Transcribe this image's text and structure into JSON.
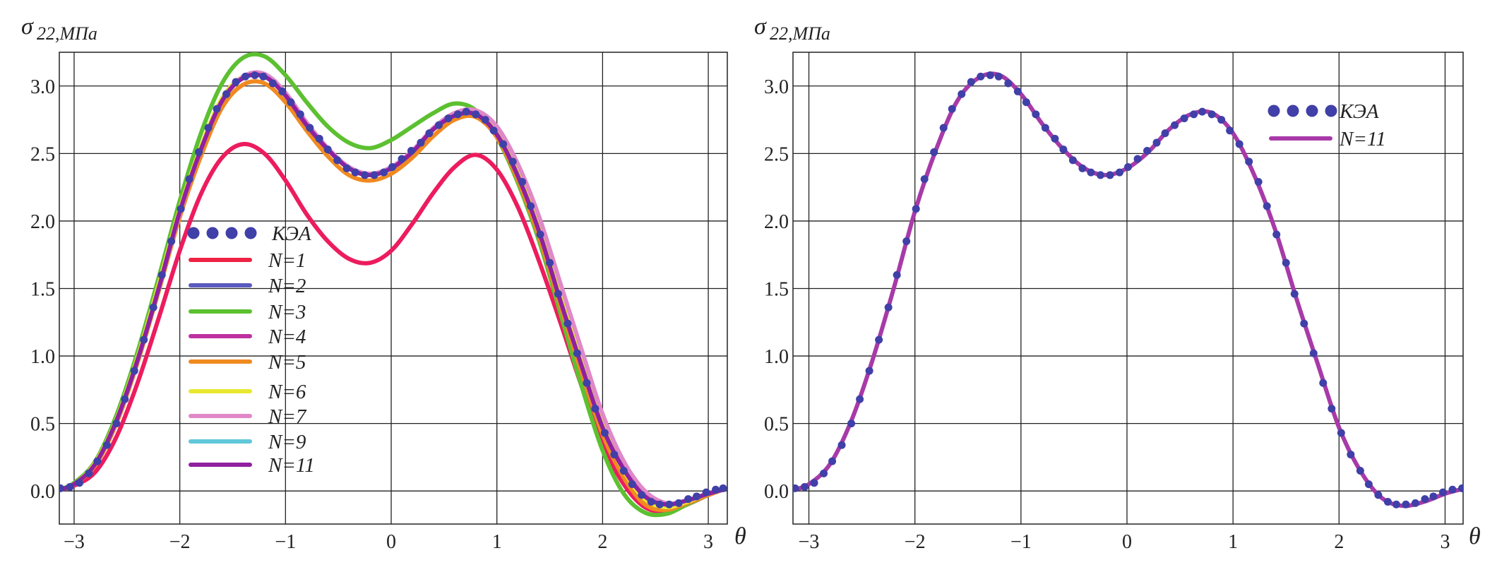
{
  "chart_data": [
    {
      "type": "line",
      "panel": "left",
      "ylabel": {
        "symbol": "σ",
        "subscript": "22,МПа"
      },
      "xlabel": "θ",
      "xlim": [
        -3.14,
        3.18
      ],
      "ylim": [
        -0.245,
        3.25
      ],
      "xticks": [
        -3,
        -2,
        -1,
        0,
        1,
        2,
        3
      ],
      "xtick_labels": [
        "−3",
        "−2",
        "−1",
        "0",
        "1",
        "2",
        "3"
      ],
      "yticks": [
        0.0,
        0.5,
        1.0,
        1.5,
        2.0,
        2.5,
        3.0
      ],
      "ytick_labels": [
        "0.0",
        "0.5",
        "1.0",
        "1.5",
        "2.0",
        "2.5",
        "3.0"
      ],
      "grid": true,
      "legend_placement": "center-left",
      "x": [
        -3.14,
        -3.0,
        -2.8,
        -2.6,
        -2.4,
        -2.2,
        -2.0,
        -1.8,
        -1.6,
        -1.4,
        -1.2,
        -1.0,
        -0.8,
        -0.6,
        -0.4,
        -0.2,
        0.0,
        0.2,
        0.4,
        0.6,
        0.8,
        1.0,
        1.2,
        1.4,
        1.6,
        1.8,
        2.0,
        2.2,
        2.4,
        2.6,
        2.8,
        3.0,
        3.14
      ],
      "series": [
        {
          "name": "N=1",
          "color": "#ec1c5e",
          "legend_color": "#ee2244",
          "values": [
            0.01,
            0.04,
            0.14,
            0.4,
            0.8,
            1.28,
            1.78,
            2.2,
            2.47,
            2.57,
            2.5,
            2.3,
            2.05,
            1.85,
            1.72,
            1.69,
            1.78,
            1.98,
            2.21,
            2.4,
            2.49,
            2.38,
            2.1,
            1.7,
            1.25,
            0.78,
            0.35,
            0.05,
            -0.12,
            -0.15,
            -0.1,
            -0.03,
            0.01
          ]
        },
        {
          "name": "N=2",
          "color": "#5a5abf",
          "values": [
            0.01,
            0.05,
            0.2,
            0.52,
            0.97,
            1.5,
            2.07,
            2.53,
            2.89,
            3.06,
            3.07,
            2.93,
            2.71,
            2.53,
            2.39,
            2.34,
            2.39,
            2.51,
            2.68,
            2.78,
            2.79,
            2.64,
            2.33,
            1.92,
            1.41,
            0.93,
            0.47,
            0.16,
            -0.04,
            -0.1,
            -0.07,
            -0.02,
            0.01
          ]
        },
        {
          "name": "N=3",
          "color": "#5cc030",
          "values": [
            0.01,
            0.06,
            0.22,
            0.56,
            1.03,
            1.58,
            2.15,
            2.65,
            3.02,
            3.21,
            3.22,
            3.08,
            2.88,
            2.7,
            2.58,
            2.54,
            2.6,
            2.7,
            2.8,
            2.87,
            2.82,
            2.62,
            2.28,
            1.85,
            1.32,
            0.78,
            0.3,
            -0.02,
            -0.16,
            -0.17,
            -0.1,
            -0.03,
            0.01
          ]
        },
        {
          "name": "N=4",
          "color": "#c030a0",
          "values": [
            0.01,
            0.05,
            0.2,
            0.52,
            0.97,
            1.5,
            2.07,
            2.53,
            2.89,
            3.06,
            3.07,
            2.93,
            2.71,
            2.53,
            2.39,
            2.34,
            2.39,
            2.51,
            2.68,
            2.78,
            2.79,
            2.64,
            2.33,
            1.92,
            1.41,
            0.93,
            0.47,
            0.16,
            -0.04,
            -0.1,
            -0.07,
            -0.02,
            0.01
          ]
        },
        {
          "name": "N=5",
          "color": "#f08a20",
          "values": [
            0.01,
            0.05,
            0.19,
            0.5,
            0.95,
            1.48,
            2.03,
            2.48,
            2.84,
            3.01,
            3.02,
            2.88,
            2.67,
            2.48,
            2.34,
            2.3,
            2.35,
            2.47,
            2.63,
            2.75,
            2.77,
            2.62,
            2.3,
            1.88,
            1.37,
            0.88,
            0.42,
            0.1,
            -0.1,
            -0.14,
            -0.09,
            -0.03,
            0.01
          ]
        },
        {
          "name": "N=6",
          "color": "#e8e830",
          "values": [
            0.01,
            0.05,
            0.21,
            0.53,
            0.99,
            1.53,
            2.09,
            2.55,
            2.91,
            3.07,
            3.08,
            2.94,
            2.72,
            2.53,
            2.39,
            2.34,
            2.39,
            2.51,
            2.68,
            2.79,
            2.8,
            2.66,
            2.36,
            1.95,
            1.44,
            0.95,
            0.49,
            0.15,
            -0.06,
            -0.12,
            -0.08,
            -0.02,
            0.01
          ]
        },
        {
          "name": "N=7",
          "color": "#e088c8",
          "values": [
            0.01,
            0.05,
            0.2,
            0.52,
            0.97,
            1.5,
            2.06,
            2.53,
            2.89,
            3.07,
            3.09,
            2.95,
            2.73,
            2.54,
            2.4,
            2.35,
            2.4,
            2.52,
            2.69,
            2.8,
            2.82,
            2.7,
            2.42,
            2.03,
            1.54,
            1.05,
            0.57,
            0.22,
            0.0,
            -0.09,
            -0.07,
            -0.02,
            0.01
          ]
        },
        {
          "name": "N=9",
          "color": "#60c8d8",
          "values": [
            0.01,
            0.05,
            0.2,
            0.52,
            0.97,
            1.5,
            2.07,
            2.53,
            2.89,
            3.06,
            3.07,
            2.93,
            2.71,
            2.53,
            2.39,
            2.34,
            2.39,
            2.51,
            2.68,
            2.78,
            2.79,
            2.64,
            2.33,
            1.92,
            1.41,
            0.93,
            0.47,
            0.16,
            -0.04,
            -0.1,
            -0.07,
            -0.02,
            0.01
          ]
        },
        {
          "name": "N=11",
          "color": "#9020a0",
          "values": [
            0.01,
            0.05,
            0.2,
            0.52,
            0.97,
            1.5,
            2.07,
            2.53,
            2.89,
            3.06,
            3.07,
            2.93,
            2.71,
            2.53,
            2.39,
            2.34,
            2.39,
            2.51,
            2.68,
            2.78,
            2.79,
            2.64,
            2.33,
            1.92,
            1.41,
            0.93,
            0.47,
            0.16,
            -0.04,
            -0.1,
            -0.07,
            -0.02,
            0.01
          ]
        }
      ],
      "markers": {
        "name": "КЭА",
        "color": "#4040a8",
        "x": [
          -3.13,
          -3.04,
          -2.95,
          -2.86,
          -2.78,
          -2.69,
          -2.6,
          -2.52,
          -2.43,
          -2.34,
          -2.25,
          -2.17,
          -2.08,
          -1.99,
          -1.91,
          -1.82,
          -1.73,
          -1.65,
          -1.56,
          -1.47,
          -1.38,
          -1.29,
          -1.21,
          -1.12,
          -1.03,
          -0.95,
          -0.86,
          -0.77,
          -0.68,
          -0.6,
          -0.51,
          -0.42,
          -0.34,
          -0.25,
          -0.16,
          -0.07,
          0.01,
          0.1,
          0.19,
          0.28,
          0.36,
          0.45,
          0.54,
          0.63,
          0.71,
          0.8,
          0.89,
          0.97,
          1.06,
          1.15,
          1.24,
          1.32,
          1.41,
          1.5,
          1.58,
          1.67,
          1.76,
          1.85,
          1.93,
          2.02,
          2.11,
          2.2,
          2.28,
          2.37,
          2.46,
          2.54,
          2.63,
          2.72,
          2.81,
          2.89,
          2.98,
          3.07,
          3.14
        ],
        "values": [
          0.02,
          0.03,
          0.06,
          0.13,
          0.22,
          0.34,
          0.5,
          0.68,
          0.89,
          1.12,
          1.36,
          1.6,
          1.85,
          2.09,
          2.31,
          2.51,
          2.69,
          2.83,
          2.94,
          3.03,
          3.07,
          3.08,
          3.07,
          3.02,
          2.96,
          2.88,
          2.79,
          2.69,
          2.61,
          2.53,
          2.45,
          2.39,
          2.36,
          2.34,
          2.34,
          2.36,
          2.4,
          2.46,
          2.52,
          2.58,
          2.65,
          2.71,
          2.76,
          2.79,
          2.81,
          2.79,
          2.75,
          2.67,
          2.57,
          2.44,
          2.29,
          2.11,
          1.9,
          1.69,
          1.46,
          1.24,
          1.02,
          0.8,
          0.61,
          0.43,
          0.27,
          0.15,
          0.05,
          -0.03,
          -0.08,
          -0.1,
          -0.1,
          -0.09,
          -0.06,
          -0.04,
          -0.01,
          0.01,
          0.02
        ]
      }
    },
    {
      "type": "line",
      "panel": "right",
      "ylabel": {
        "symbol": "σ",
        "subscript": "22,МПа"
      },
      "xlabel": "θ",
      "xlim": [
        -3.15,
        3.17
      ],
      "ylim": [
        -0.245,
        3.25
      ],
      "xticks": [
        -3,
        -2,
        -1,
        0,
        1,
        2,
        3
      ],
      "xtick_labels": [
        "−3",
        "−2",
        "−1",
        "0",
        "1",
        "2",
        "3"
      ],
      "yticks": [
        0.0,
        0.5,
        1.0,
        1.5,
        2.0,
        2.5,
        3.0
      ],
      "ytick_labels": [
        "0.0",
        "0.5",
        "1.0",
        "1.5",
        "2.0",
        "2.5",
        "3.0"
      ],
      "grid": true,
      "legend_placement": "top-right",
      "x": [
        -3.14,
        -3.0,
        -2.8,
        -2.6,
        -2.4,
        -2.2,
        -2.0,
        -1.8,
        -1.6,
        -1.4,
        -1.2,
        -1.0,
        -0.8,
        -0.6,
        -0.4,
        -0.2,
        0.0,
        0.2,
        0.4,
        0.6,
        0.8,
        1.0,
        1.2,
        1.4,
        1.6,
        1.8,
        2.0,
        2.2,
        2.4,
        2.6,
        2.8,
        3.0,
        3.14
      ],
      "series": [
        {
          "name": "N=11",
          "color": "#a83aa8",
          "values": [
            0.01,
            0.05,
            0.2,
            0.52,
            0.97,
            1.5,
            2.07,
            2.53,
            2.89,
            3.06,
            3.08,
            2.94,
            2.72,
            2.53,
            2.39,
            2.34,
            2.39,
            2.51,
            2.68,
            2.79,
            2.8,
            2.65,
            2.34,
            1.93,
            1.42,
            0.94,
            0.47,
            0.15,
            -0.05,
            -0.11,
            -0.08,
            -0.02,
            0.01
          ]
        }
      ],
      "markers": {
        "name": "КЭА",
        "color": "#4040a8",
        "x": [
          -3.13,
          -3.04,
          -2.95,
          -2.86,
          -2.78,
          -2.69,
          -2.6,
          -2.52,
          -2.43,
          -2.34,
          -2.25,
          -2.17,
          -2.08,
          -1.99,
          -1.91,
          -1.82,
          -1.73,
          -1.65,
          -1.56,
          -1.47,
          -1.38,
          -1.29,
          -1.21,
          -1.12,
          -1.03,
          -0.95,
          -0.86,
          -0.77,
          -0.68,
          -0.6,
          -0.51,
          -0.42,
          -0.34,
          -0.25,
          -0.16,
          -0.07,
          0.01,
          0.1,
          0.19,
          0.28,
          0.36,
          0.45,
          0.54,
          0.63,
          0.71,
          0.8,
          0.89,
          0.97,
          1.06,
          1.15,
          1.24,
          1.32,
          1.41,
          1.5,
          1.58,
          1.67,
          1.76,
          1.85,
          1.93,
          2.02,
          2.11,
          2.2,
          2.28,
          2.37,
          2.46,
          2.54,
          2.63,
          2.72,
          2.81,
          2.89,
          2.98,
          3.07,
          3.16
        ],
        "values": [
          0.02,
          0.03,
          0.06,
          0.13,
          0.22,
          0.34,
          0.5,
          0.68,
          0.89,
          1.12,
          1.36,
          1.6,
          1.85,
          2.09,
          2.31,
          2.51,
          2.69,
          2.83,
          2.94,
          3.03,
          3.07,
          3.08,
          3.07,
          3.02,
          2.96,
          2.88,
          2.79,
          2.69,
          2.61,
          2.53,
          2.45,
          2.39,
          2.36,
          2.34,
          2.34,
          2.36,
          2.4,
          2.46,
          2.52,
          2.58,
          2.65,
          2.71,
          2.76,
          2.79,
          2.81,
          2.79,
          2.75,
          2.67,
          2.57,
          2.44,
          2.29,
          2.11,
          1.9,
          1.69,
          1.46,
          1.24,
          1.02,
          0.8,
          0.61,
          0.43,
          0.27,
          0.15,
          0.05,
          -0.03,
          -0.08,
          -0.1,
          -0.1,
          -0.09,
          -0.06,
          -0.04,
          -0.01,
          0.01,
          0.02
        ]
      }
    }
  ]
}
